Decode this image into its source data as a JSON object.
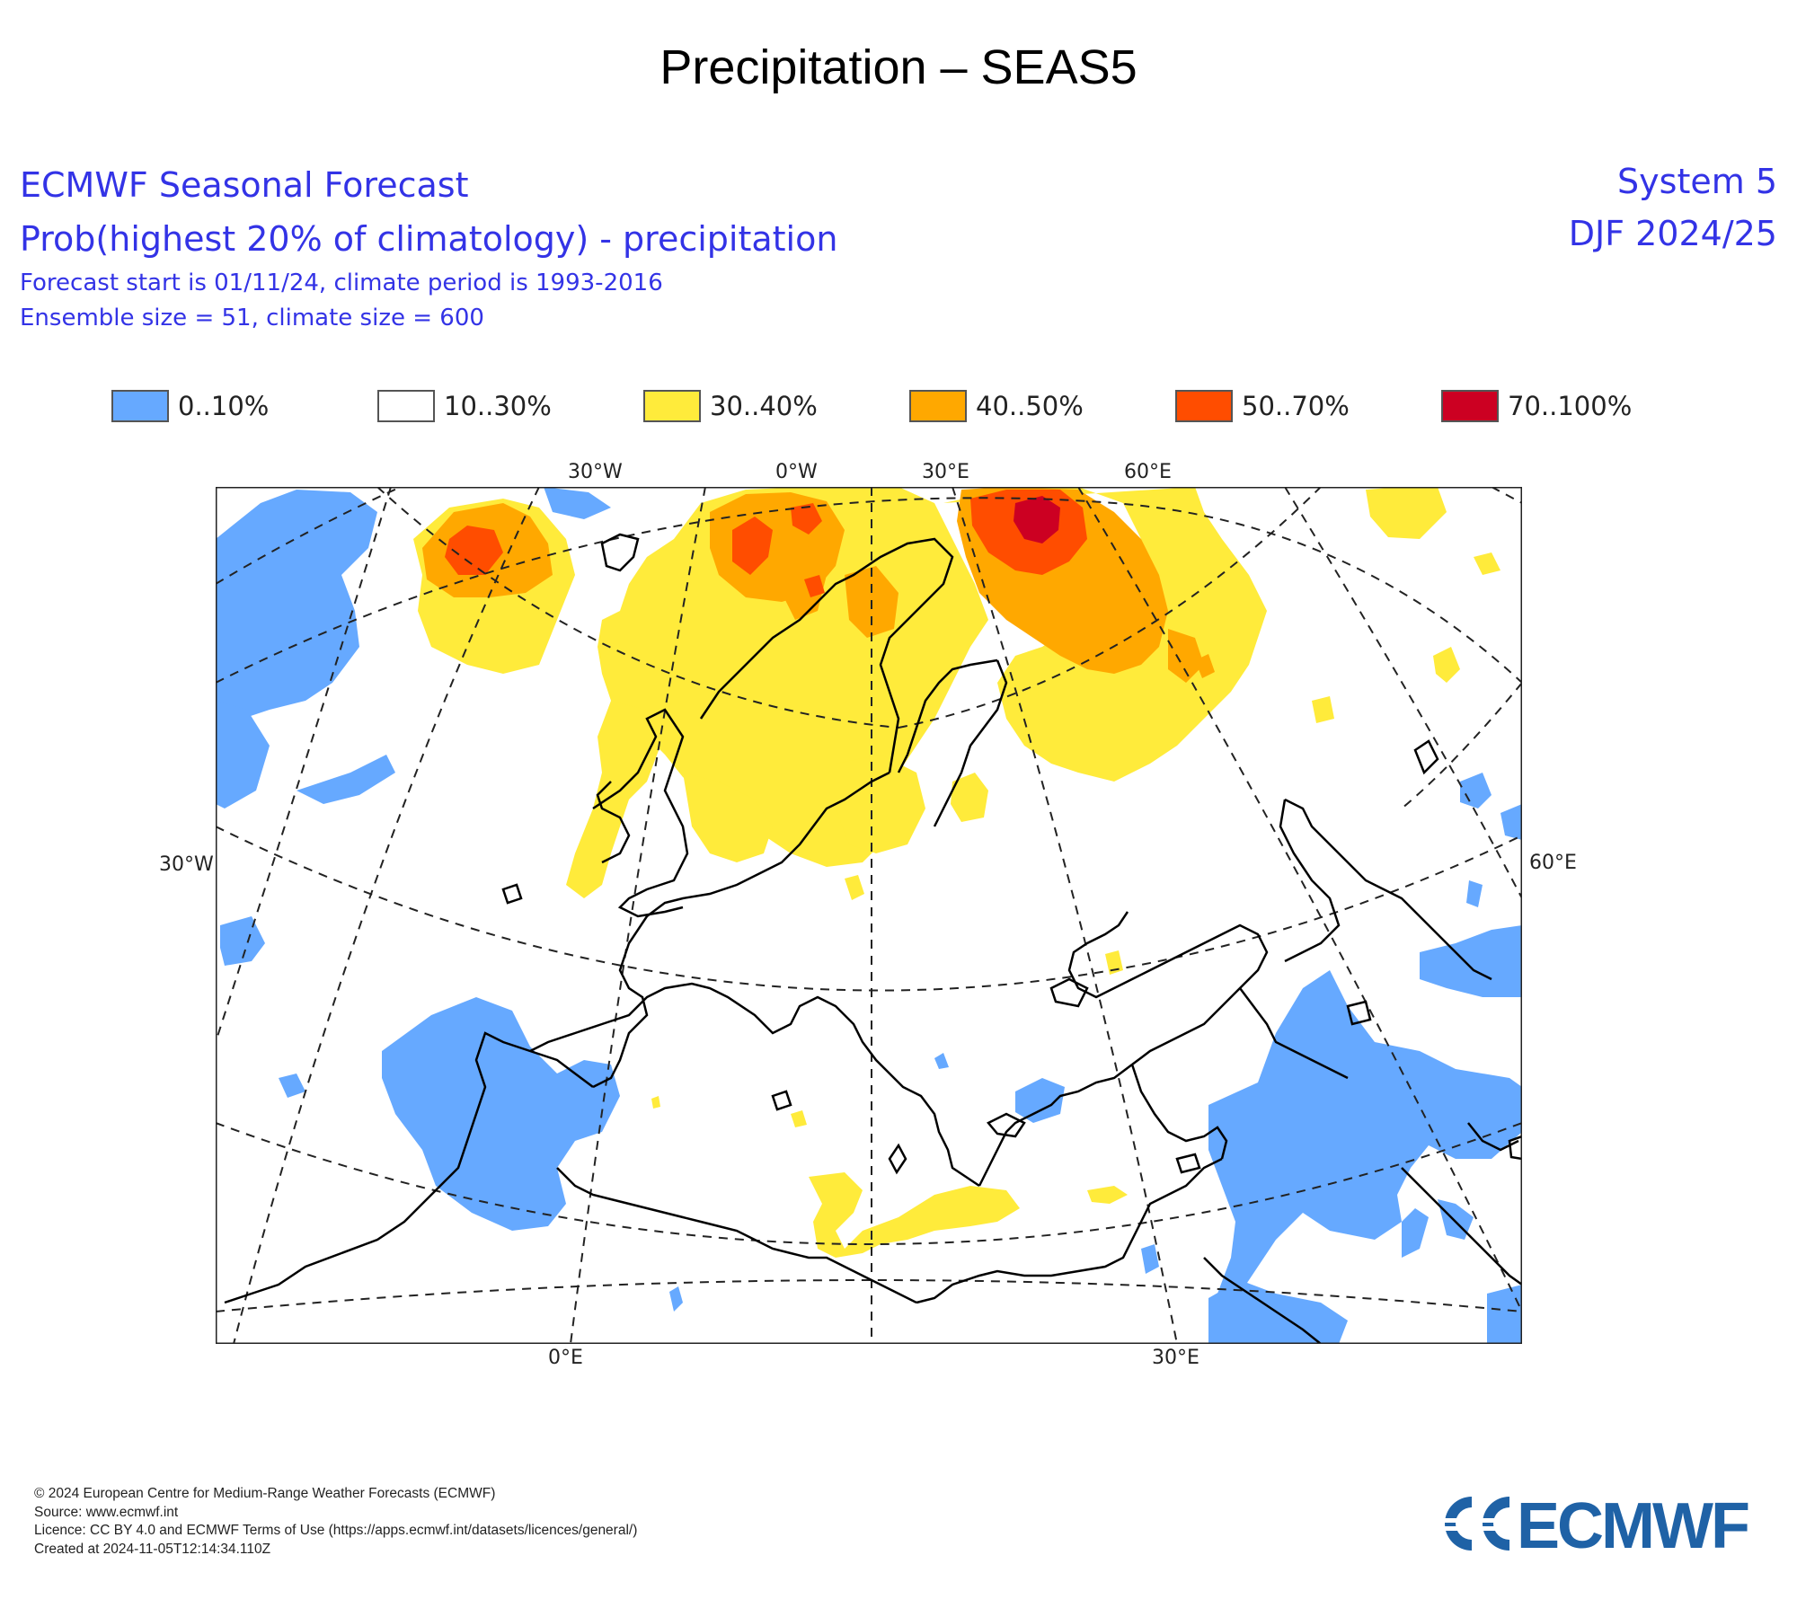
{
  "page_title": "Precipitation – SEAS5",
  "header": {
    "line1": "ECMWF Seasonal Forecast",
    "line2": "Prob(highest 20% of climatology) - precipitation",
    "line3": "Forecast start is 01/11/24, climate period is 1993-2016",
    "line4": "Ensemble size = 51, climate size = 600",
    "system": "System 5",
    "period": "DJF 2024/25"
  },
  "legend": [
    {
      "label": "0..10%",
      "color": "#66a9ff"
    },
    {
      "label": "10..30%",
      "color": "#ffffff"
    },
    {
      "label": "30..40%",
      "color": "#ffeb3b"
    },
    {
      "label": "40..50%",
      "color": "#ffa800"
    },
    {
      "label": "50..70%",
      "color": "#ff4d00"
    },
    {
      "label": "70..100%",
      "color": "#cc0022"
    }
  ],
  "map": {
    "top_labels": [
      "30°W",
      "0°W",
      "30°E",
      "60°E"
    ],
    "side_labels": [
      "30°W",
      "60°E"
    ],
    "bottom_labels": [
      "0°E",
      "30°E"
    ]
  },
  "footer": {
    "copyright": "© 2024 European Centre for Medium-Range Weather Forecasts (ECMWF)",
    "source": "Source: www.ecmwf.int",
    "licence": "Licence: CC BY 4.0 and ECMWF Terms of Use (https://apps.ecmwf.int/datasets/licences/general/)",
    "created": "Created at 2024-11-05T12:14:34.110Z"
  },
  "logo": {
    "text": "ECMWF",
    "color": "#1f62a6"
  }
}
